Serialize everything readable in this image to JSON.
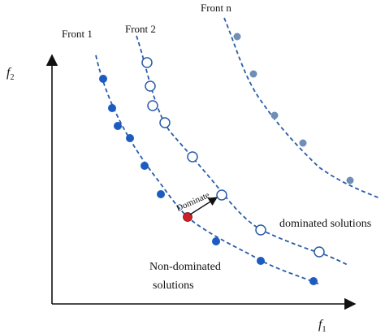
{
  "labels": {
    "front1": "Front 1",
    "front2": "Front 2",
    "frontn": "Front n",
    "y_axis_main": "f",
    "y_axis_sub": "2",
    "x_axis_main": "f",
    "x_axis_sub": "1",
    "dominate_arrow": "Dominate",
    "dominated_solutions": "dominated solutions",
    "non_dominated_line1": "Non-dominated",
    "non_dominated_line2": "solutions"
  },
  "colors": {
    "axis": "#111111",
    "curve": "#2a5ca8",
    "front1_point": "#1c5bbf",
    "front2_point_stroke": "#2a5ca8",
    "frontn_point": "#6d8fb8",
    "highlight_point": "#d11f2a",
    "arrow": "#111111"
  },
  "fronts": [
    {
      "name": "Front 1",
      "marker": "filled",
      "point_count": 12
    },
    {
      "name": "Front 2",
      "marker": "hollow",
      "point_count": 9
    },
    {
      "name": "Front n",
      "marker": "shaded",
      "point_count": 6
    }
  ],
  "highlighted_point": {
    "front": "Front 1",
    "index": 6,
    "color_key": "highlight_point"
  }
}
